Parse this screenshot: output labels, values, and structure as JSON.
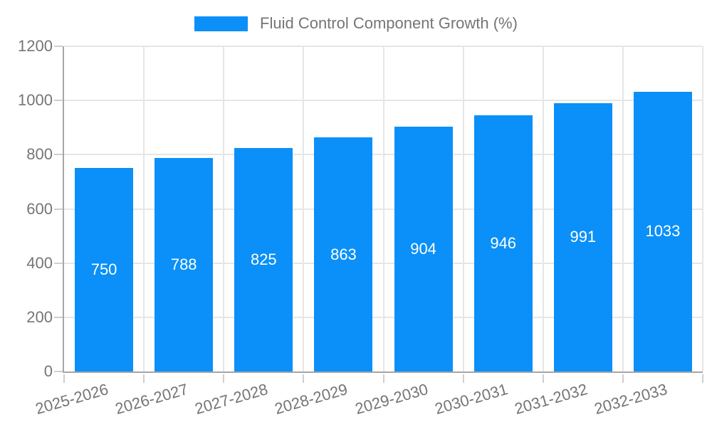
{
  "legend": {
    "label": "Fluid Control Component Growth (%)",
    "swatch_color": "#0a90f8"
  },
  "chart_data": {
    "type": "bar",
    "title": "Fluid Control Component Growth (%)",
    "categories": [
      "2025-2026",
      "2026-2027",
      "2027-2028",
      "2028-2029",
      "2029-2030",
      "2030-2031",
      "2031-2032",
      "2032-2033"
    ],
    "values": [
      750,
      788,
      825,
      863,
      904,
      946,
      991,
      1033
    ],
    "xlabel": "",
    "ylabel": "",
    "y_ticks": [
      0,
      200,
      400,
      600,
      800,
      1000,
      1200
    ],
    "ylim": [
      0,
      1200
    ],
    "grid": true,
    "legend_position": "top-center",
    "x_label_rotation_deg": -16,
    "bar_color": "#0a90f8",
    "bar_label_color": "#ffffff",
    "axis_color": "#a6a6a6",
    "grid_color": "#e6e6e6",
    "text_color": "#757575",
    "background_color": "#ffffff"
  }
}
